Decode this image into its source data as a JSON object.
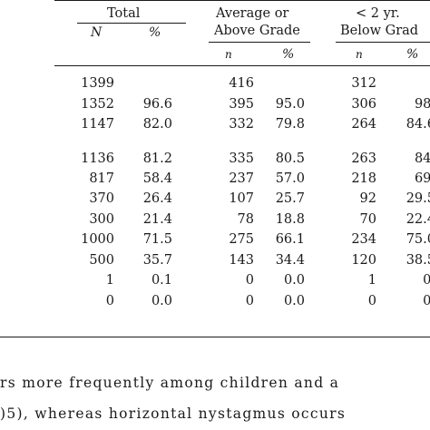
{
  "table": {
    "groups": [
      {
        "label": "Total",
        "sub": [
          "N",
          "%"
        ]
      },
      {
        "label": "Average or",
        "label2": "Above Grade",
        "sub": [
          "n",
          "%"
        ]
      },
      {
        "label": "< 2 yr.",
        "label2": "Below Grad",
        "sub": [
          "n",
          "%"
        ]
      }
    ],
    "rows": [
      [
        "1399",
        "",
        "416",
        "",
        "312",
        ""
      ],
      [
        "1352",
        "96.6",
        "395",
        "95.0",
        "306",
        "98."
      ],
      [
        "1147",
        "82.0",
        "332",
        "79.8",
        "264",
        "84.6"
      ],
      [
        "1136",
        "81.2",
        "335",
        "80.5",
        "263",
        "84."
      ],
      [
        "817",
        "58.4",
        "237",
        "57.0",
        "218",
        "69."
      ],
      [
        "370",
        "26.4",
        "107",
        "25.7",
        "92",
        "29.5"
      ],
      [
        "300",
        "21.4",
        "78",
        "18.8",
        "70",
        "22.4"
      ],
      [
        "1000",
        "71.5",
        "275",
        "66.1",
        "234",
        "75.0"
      ],
      [
        "500",
        "35.7",
        "143",
        "34.4",
        "120",
        "38.5"
      ],
      [
        "1",
        "0.1",
        "0",
        "0.0",
        "1",
        "0."
      ],
      [
        "0",
        "0.0",
        "0",
        "0.0",
        "0",
        "0."
      ]
    ]
  },
  "body_text": {
    "line1": "rs more frequently among children and a",
    "line2": ")5), whereas horizontal nystagmus occurs"
  }
}
